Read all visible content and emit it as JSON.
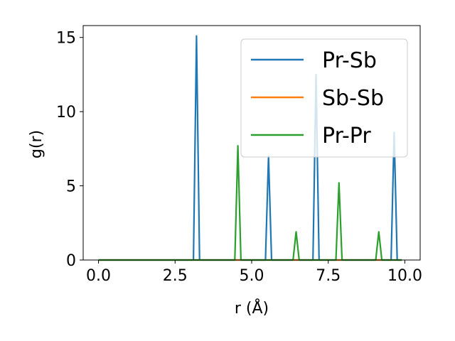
{
  "chart_data": {
    "type": "line",
    "xlabel": "r (Å)",
    "ylabel": "g(r)",
    "xlim": [
      -0.5,
      10.5
    ],
    "ylim": [
      0,
      15.8
    ],
    "xticks": [
      {
        "value": 0.0,
        "label": "0.0"
      },
      {
        "value": 2.5,
        "label": "2.5"
      },
      {
        "value": 5.0,
        "label": "5.0"
      },
      {
        "value": 7.5,
        "label": "7.5"
      },
      {
        "value": 10.0,
        "label": "10.0"
      }
    ],
    "yticks": [
      {
        "value": 0,
        "label": "0"
      },
      {
        "value": 5,
        "label": "5"
      },
      {
        "value": 10,
        "label": "10"
      },
      {
        "value": 15,
        "label": "15"
      }
    ],
    "grid": false,
    "legend_position": "top-right",
    "series": [
      {
        "name": "Pr-Sb",
        "color": "#1f77b4",
        "x": [
          0.0,
          3.1,
          3.2,
          3.3,
          5.45,
          5.55,
          5.65,
          7.0,
          7.1,
          7.2,
          9.55,
          9.65,
          9.75,
          9.9
        ],
        "y": [
          0,
          0,
          15.1,
          0,
          0,
          7.0,
          0,
          0,
          12.5,
          0,
          0,
          8.6,
          0,
          0
        ]
      },
      {
        "name": "Sb-Sb",
        "color": "#ff7f0e",
        "x": [
          0.0,
          9.9
        ],
        "y": [
          0,
          0
        ]
      },
      {
        "name": "Pr-Pr",
        "color": "#2ca02c",
        "x": [
          0.0,
          4.45,
          4.55,
          4.65,
          6.35,
          6.45,
          6.55,
          7.75,
          7.85,
          7.95,
          9.05,
          9.15,
          9.25,
          9.9
        ],
        "y": [
          0,
          0,
          7.7,
          0,
          0,
          1.9,
          0,
          0,
          5.2,
          0,
          0,
          1.9,
          0,
          0
        ]
      }
    ]
  }
}
